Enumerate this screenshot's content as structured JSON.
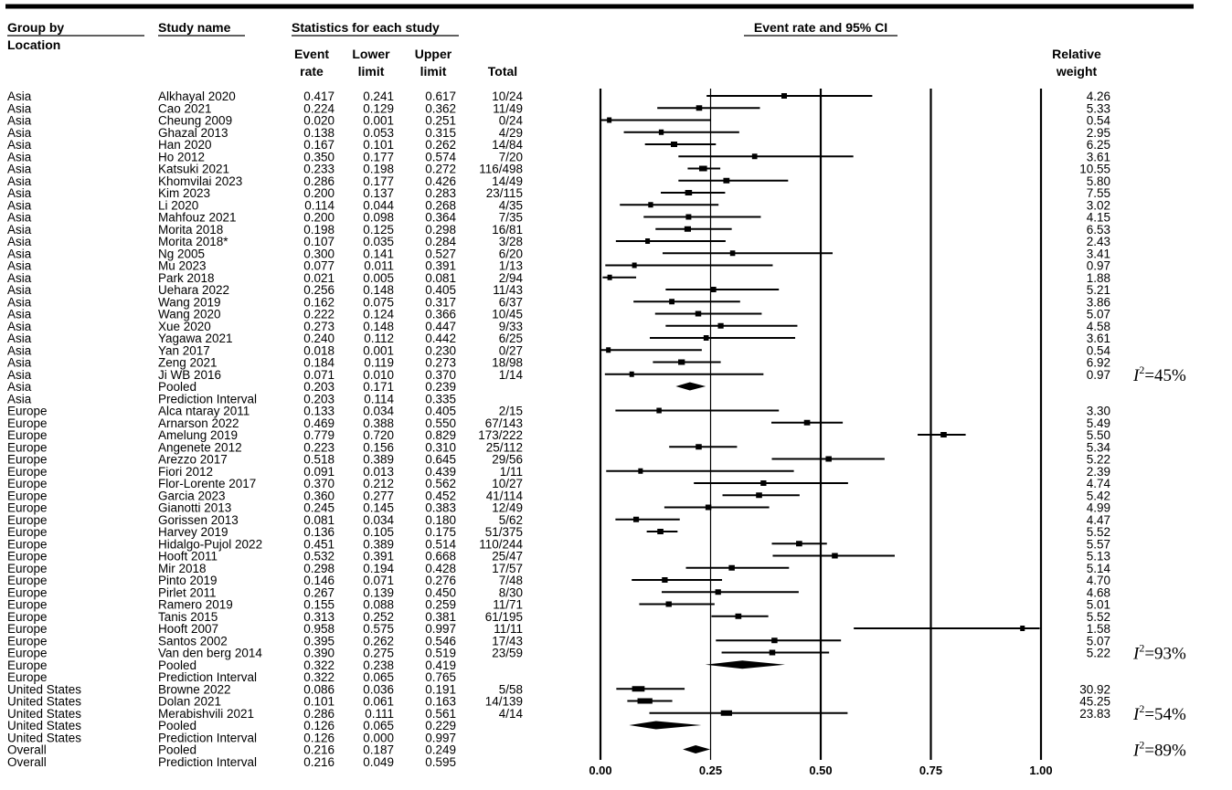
{
  "chart_data": {
    "type": "forest",
    "headers": {
      "group_by": "Group by",
      "location": "Location",
      "study_name": "Study name",
      "stats_header": "Statistics for each study",
      "event_rate": [
        "Event",
        "rate"
      ],
      "lower_limit": [
        "Lower",
        "limit"
      ],
      "upper_limit": [
        "Upper",
        "limit"
      ],
      "total": "Total",
      "plot_header": "Event rate and 95% CI",
      "relative_weight": [
        "Relative",
        "weight"
      ]
    },
    "x_axis": {
      "range": [
        0,
        1
      ],
      "ticks": [
        0.0,
        0.25,
        0.5,
        0.75,
        1.0
      ],
      "tick_labels": [
        "0.00",
        "0.25",
        "0.50",
        "0.75",
        "1.00"
      ]
    },
    "rows": [
      {
        "group": "Asia",
        "study": "Alkhayal 2020",
        "er": "0.417",
        "ll": "0.241",
        "ul": "0.617",
        "total": "10/24",
        "weight": "4.26",
        "kind": "study"
      },
      {
        "group": "Asia",
        "study": "Cao 2021",
        "er": "0.224",
        "ll": "0.129",
        "ul": "0.362",
        "total": "11/49",
        "weight": "5.33",
        "kind": "study"
      },
      {
        "group": "Asia",
        "study": "Cheung 2009",
        "er": "0.020",
        "ll": "0.001",
        "ul": "0.251",
        "total": "0/24",
        "weight": "0.54",
        "kind": "study"
      },
      {
        "group": "Asia",
        "study": "Ghazal 2013",
        "er": "0.138",
        "ll": "0.053",
        "ul": "0.315",
        "total": "4/29",
        "weight": "2.95",
        "kind": "study"
      },
      {
        "group": "Asia",
        "study": "Han 2020",
        "er": "0.167",
        "ll": "0.101",
        "ul": "0.262",
        "total": "14/84",
        "weight": "6.25",
        "kind": "study"
      },
      {
        "group": "Asia",
        "study": "Ho 2012",
        "er": "0.350",
        "ll": "0.177",
        "ul": "0.574",
        "total": "7/20",
        "weight": "3.61",
        "kind": "study"
      },
      {
        "group": "Asia",
        "study": "Katsuki 2021",
        "er": "0.233",
        "ll": "0.198",
        "ul": "0.272",
        "total": "116/498",
        "weight": "10.55",
        "kind": "study"
      },
      {
        "group": "Asia",
        "study": "Khomvilai 2023",
        "er": "0.286",
        "ll": "0.177",
        "ul": "0.426",
        "total": "14/49",
        "weight": "5.80",
        "kind": "study"
      },
      {
        "group": "Asia",
        "study": "Kim 2023",
        "er": "0.200",
        "ll": "0.137",
        "ul": "0.283",
        "total": "23/115",
        "weight": "7.55",
        "kind": "study"
      },
      {
        "group": "Asia",
        "study": "Li 2020",
        "er": "0.114",
        "ll": "0.044",
        "ul": "0.268",
        "total": "4/35",
        "weight": "3.02",
        "kind": "study"
      },
      {
        "group": "Asia",
        "study": "Mahfouz 2021",
        "er": "0.200",
        "ll": "0.098",
        "ul": "0.364",
        "total": "7/35",
        "weight": "4.15",
        "kind": "study"
      },
      {
        "group": "Asia",
        "study": "Morita 2018",
        "er": "0.198",
        "ll": "0.125",
        "ul": "0.298",
        "total": "16/81",
        "weight": "6.53",
        "kind": "study"
      },
      {
        "group": "Asia",
        "study": "Morita 2018*",
        "er": "0.107",
        "ll": "0.035",
        "ul": "0.284",
        "total": "3/28",
        "weight": "2.43",
        "kind": "study"
      },
      {
        "group": "Asia",
        "study": "Ng 2005",
        "er": "0.300",
        "ll": "0.141",
        "ul": "0.527",
        "total": "6/20",
        "weight": "3.41",
        "kind": "study"
      },
      {
        "group": "Asia",
        "study": "Mu 2023",
        "er": "0.077",
        "ll": "0.011",
        "ul": "0.391",
        "total": "1/13",
        "weight": "0.97",
        "kind": "study"
      },
      {
        "group": "Asia",
        "study": "Park 2018",
        "er": "0.021",
        "ll": "0.005",
        "ul": "0.081",
        "total": "2/94",
        "weight": "1.88",
        "kind": "study"
      },
      {
        "group": "Asia",
        "study": "Uehara 2022",
        "er": "0.256",
        "ll": "0.148",
        "ul": "0.405",
        "total": "11/43",
        "weight": "5.21",
        "kind": "study"
      },
      {
        "group": "Asia",
        "study": "Wang 2019",
        "er": "0.162",
        "ll": "0.075",
        "ul": "0.317",
        "total": "6/37",
        "weight": "3.86",
        "kind": "study"
      },
      {
        "group": "Asia",
        "study": "Wang 2020",
        "er": "0.222",
        "ll": "0.124",
        "ul": "0.366",
        "total": "10/45",
        "weight": "5.07",
        "kind": "study"
      },
      {
        "group": "Asia",
        "study": "Xue 2020",
        "er": "0.273",
        "ll": "0.148",
        "ul": "0.447",
        "total": "9/33",
        "weight": "4.58",
        "kind": "study"
      },
      {
        "group": "Asia",
        "study": "Yagawa 2021",
        "er": "0.240",
        "ll": "0.112",
        "ul": "0.442",
        "total": "6/25",
        "weight": "3.61",
        "kind": "study"
      },
      {
        "group": "Asia",
        "study": "Yan 2017",
        "er": "0.018",
        "ll": "0.001",
        "ul": "0.230",
        "total": "0/27",
        "weight": "0.54",
        "kind": "study"
      },
      {
        "group": "Asia",
        "study": "Zeng 2021",
        "er": "0.184",
        "ll": "0.119",
        "ul": "0.273",
        "total": "18/98",
        "weight": "6.92",
        "kind": "study"
      },
      {
        "group": "Asia",
        "study": "Ji WB 2016",
        "er": "0.071",
        "ll": "0.010",
        "ul": "0.370",
        "total": "1/14",
        "weight": "0.97",
        "kind": "study"
      },
      {
        "group": "Asia",
        "study": "Pooled",
        "er": "0.203",
        "ll": "0.171",
        "ul": "0.239",
        "total": "",
        "weight": "",
        "kind": "pooled"
      },
      {
        "group": "Asia",
        "study": "Prediction Interval",
        "er": "0.203",
        "ll": "0.114",
        "ul": "0.335",
        "total": "",
        "weight": "",
        "kind": "pi"
      },
      {
        "group": "Europe",
        "study": "Alca ntaray 2011",
        "er": "0.133",
        "ll": "0.034",
        "ul": "0.405",
        "total": "2/15",
        "weight": "3.30",
        "kind": "study"
      },
      {
        "group": "Europe",
        "study": "Arnarson 2022",
        "er": "0.469",
        "ll": "0.388",
        "ul": "0.550",
        "total": "67/143",
        "weight": "5.49",
        "kind": "study"
      },
      {
        "group": "Europe",
        "study": "Amelung 2019",
        "er": "0.779",
        "ll": "0.720",
        "ul": "0.829",
        "total": "173/222",
        "weight": "5.50",
        "kind": "study"
      },
      {
        "group": "Europe",
        "study": "Angenete 2012",
        "er": "0.223",
        "ll": "0.156",
        "ul": "0.310",
        "total": "25/112",
        "weight": "5.34",
        "kind": "study"
      },
      {
        "group": "Europe",
        "study": "Arezzo 2017",
        "er": "0.518",
        "ll": "0.389",
        "ul": "0.645",
        "total": "29/56",
        "weight": "5.22",
        "kind": "study"
      },
      {
        "group": "Europe",
        "study": "Fiori 2012",
        "er": "0.091",
        "ll": "0.013",
        "ul": "0.439",
        "total": "1/11",
        "weight": "2.39",
        "kind": "study"
      },
      {
        "group": "Europe",
        "study": "Flor-Lorente 2017",
        "er": "0.370",
        "ll": "0.212",
        "ul": "0.562",
        "total": "10/27",
        "weight": "4.74",
        "kind": "study"
      },
      {
        "group": "Europe",
        "study": "Garcia 2023",
        "er": "0.360",
        "ll": "0.277",
        "ul": "0.452",
        "total": "41/114",
        "weight": "5.42",
        "kind": "study"
      },
      {
        "group": "Europe",
        "study": "Gianotti 2013",
        "er": "0.245",
        "ll": "0.145",
        "ul": "0.383",
        "total": "12/49",
        "weight": "4.99",
        "kind": "study"
      },
      {
        "group": "Europe",
        "study": "Gorissen 2013",
        "er": "0.081",
        "ll": "0.034",
        "ul": "0.180",
        "total": "5/62",
        "weight": "4.47",
        "kind": "study"
      },
      {
        "group": "Europe",
        "study": "Harvey 2019",
        "er": "0.136",
        "ll": "0.105",
        "ul": "0.175",
        "total": "51/375",
        "weight": "5.52",
        "kind": "study"
      },
      {
        "group": "Europe",
        "study": "Hidalgo-Pujol 2022",
        "er": "0.451",
        "ll": "0.389",
        "ul": "0.514",
        "total": "110/244",
        "weight": "5.57",
        "kind": "study"
      },
      {
        "group": "Europe",
        "study": "Hooft 2011",
        "er": "0.532",
        "ll": "0.391",
        "ul": "0.668",
        "total": "25/47",
        "weight": "5.13",
        "kind": "study"
      },
      {
        "group": "Europe",
        "study": "Mir 2018",
        "er": "0.298",
        "ll": "0.194",
        "ul": "0.428",
        "total": "17/57",
        "weight": "5.14",
        "kind": "study"
      },
      {
        "group": "Europe",
        "study": "Pinto 2019",
        "er": "0.146",
        "ll": "0.071",
        "ul": "0.276",
        "total": "7/48",
        "weight": "4.70",
        "kind": "study"
      },
      {
        "group": "Europe",
        "study": "Pirlet 2011",
        "er": "0.267",
        "ll": "0.139",
        "ul": "0.450",
        "total": "8/30",
        "weight": "4.68",
        "kind": "study"
      },
      {
        "group": "Europe",
        "study": "Ramero 2019",
        "er": "0.155",
        "ll": "0.088",
        "ul": "0.259",
        "total": "11/71",
        "weight": "5.01",
        "kind": "study"
      },
      {
        "group": "Europe",
        "study": "Tanis 2015",
        "er": "0.313",
        "ll": "0.252",
        "ul": "0.381",
        "total": "61/195",
        "weight": "5.52",
        "kind": "study"
      },
      {
        "group": "Europe",
        "study": "Hooft 2007",
        "er": "0.958",
        "ll": "0.575",
        "ul": "0.997",
        "total": "11/11",
        "weight": "1.58",
        "kind": "study"
      },
      {
        "group": "Europe",
        "study": "Santos 2002",
        "er": "0.395",
        "ll": "0.262",
        "ul": "0.546",
        "total": "17/43",
        "weight": "5.07",
        "kind": "study"
      },
      {
        "group": "Europe",
        "study": "Van den berg 2014",
        "er": "0.390",
        "ll": "0.275",
        "ul": "0.519",
        "total": "23/59",
        "weight": "5.22",
        "kind": "study"
      },
      {
        "group": "Europe",
        "study": "Pooled",
        "er": "0.322",
        "ll": "0.238",
        "ul": "0.419",
        "total": "",
        "weight": "",
        "kind": "pooled"
      },
      {
        "group": "Europe",
        "study": "Prediction Interval",
        "er": "0.322",
        "ll": "0.065",
        "ul": "0.765",
        "total": "",
        "weight": "",
        "kind": "pi"
      },
      {
        "group": "United States",
        "study": "Browne 2022",
        "er": "0.086",
        "ll": "0.036",
        "ul": "0.191",
        "total": "5/58",
        "weight": "30.92",
        "kind": "study"
      },
      {
        "group": "United States",
        "study": "Dolan 2021",
        "er": "0.101",
        "ll": "0.061",
        "ul": "0.163",
        "total": "14/139",
        "weight": "45.25",
        "kind": "study"
      },
      {
        "group": "United States",
        "study": "Merabishvili 2021",
        "er": "0.286",
        "ll": "0.111",
        "ul": "0.561",
        "total": "4/14",
        "weight": "23.83",
        "kind": "study"
      },
      {
        "group": "United States",
        "study": "Pooled",
        "er": "0.126",
        "ll": "0.065",
        "ul": "0.229",
        "total": "",
        "weight": "",
        "kind": "pooled"
      },
      {
        "group": "United States",
        "study": "Prediction Interval",
        "er": "0.126",
        "ll": "0.000",
        "ul": "0.997",
        "total": "",
        "weight": "",
        "kind": "pi"
      },
      {
        "group": "Overall",
        "study": "Pooled",
        "er": "0.216",
        "ll": "0.187",
        "ul": "0.249",
        "total": "",
        "weight": "",
        "kind": "pooled"
      },
      {
        "group": "Overall",
        "study": "Prediction Interval",
        "er": "0.216",
        "ll": "0.049",
        "ul": "0.595",
        "total": "",
        "weight": "",
        "kind": "pi"
      }
    ],
    "heterogeneity": [
      {
        "group": "Asia",
        "label": "I",
        "sup": "2",
        "value": "=45%"
      },
      {
        "group": "Europe",
        "label": "I",
        "sup": "2",
        "value": "=93%"
      },
      {
        "group": "United States",
        "label": "I",
        "sup": "2",
        "value": "=54%"
      },
      {
        "group": "Overall",
        "label": "I",
        "sup": "2",
        "value": "=89%"
      }
    ]
  }
}
